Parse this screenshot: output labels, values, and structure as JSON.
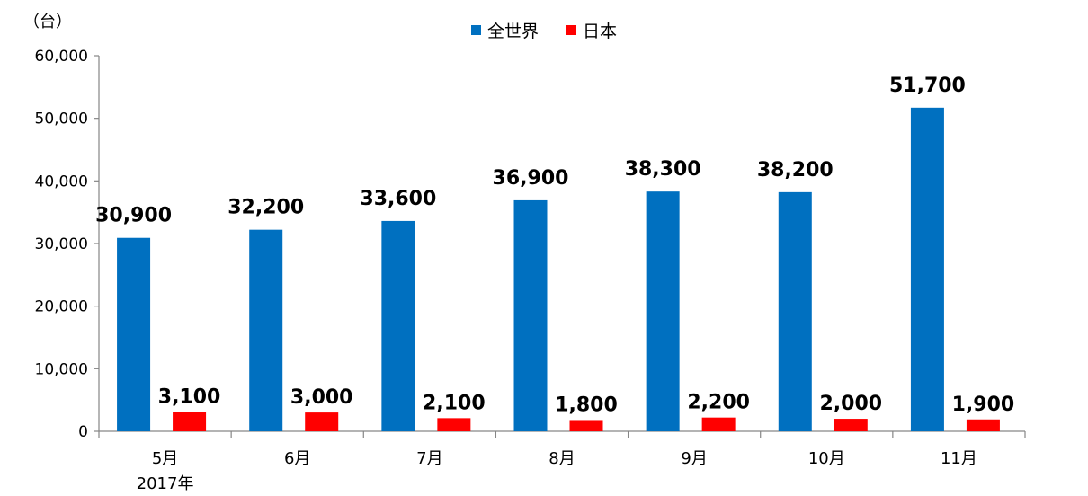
{
  "chart_data": {
    "type": "bar",
    "unit_label": "（台）",
    "categories": [
      "5月",
      "6月",
      "7月",
      "8月",
      "9月",
      "10月",
      "11月"
    ],
    "category_sublabels": [
      "2017年",
      "",
      "",
      "",
      "",
      "",
      ""
    ],
    "series": [
      {
        "name": "全世界",
        "color": "#0070C0",
        "values": [
          30900,
          32200,
          33600,
          36900,
          38300,
          38200,
          51700
        ],
        "labels": [
          "30,900",
          "32,200",
          "33,600",
          "36,900",
          "38,300",
          "38,200",
          "51,700"
        ]
      },
      {
        "name": "日本",
        "color": "#FF0000",
        "values": [
          3100,
          3000,
          2100,
          1800,
          2200,
          2000,
          1900
        ],
        "labels": [
          "3,100",
          "3,000",
          "2,100",
          "1,800",
          "2,200",
          "2,000",
          "1,900"
        ]
      }
    ],
    "ylim": [
      0,
      60000
    ],
    "yticks": [
      0,
      10000,
      20000,
      30000,
      40000,
      50000,
      60000
    ],
    "ytick_labels": [
      "0",
      "10,000",
      "20,000",
      "30,000",
      "40,000",
      "50,000",
      "60,000"
    ],
    "grid": false,
    "legend_position": "top-center"
  }
}
